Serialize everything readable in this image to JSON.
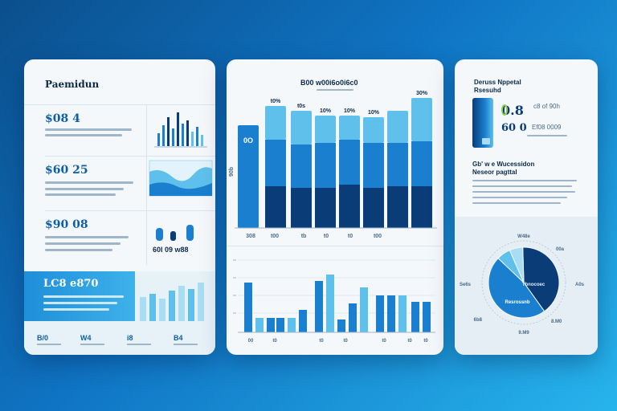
{
  "colors": {
    "dark_blue": "#0a3d78",
    "mid_blue": "#1a7fcf",
    "light_blue": "#5fc0ec",
    "pale_blue": "#a8ddf4",
    "accent_green": "#8fd14f",
    "text_dark": "#0b2a4a",
    "text_muted": "#4c6a86"
  },
  "left_card": {
    "title": "Paemidun",
    "stats": [
      {
        "value": "$08 4"
      },
      {
        "value": "$60 25"
      },
      {
        "value": "$90 08"
      }
    ],
    "mini_label": "60l 09 w88",
    "footer": {
      "value": "LC8 e870",
      "tabs": [
        {
          "label": "B/0"
        },
        {
          "label": "W4"
        },
        {
          "label": "i8"
        },
        {
          "label": "B4"
        }
      ]
    }
  },
  "mid_card": {
    "title": "B00 w00i6o0i6c0",
    "top_chart": {
      "bar_labels": [
        "t0%",
        "t0s",
        "10%",
        "10%",
        "10%",
        "30%"
      ],
      "inner_label": "0O",
      "axis_label": "90b",
      "x_labels": [
        "308",
        "t00",
        "tb",
        "t0",
        "t0",
        "t00"
      ]
    },
    "bottom_chart": {
      "x_labels": [
        "00",
        "t0",
        "t0",
        "t0",
        "t0",
        "t0",
        "t0"
      ]
    }
  },
  "right_card": {
    "title_line1": "Deruss Nppetal",
    "title_line2": "Rsesuhd",
    "figure1": "0.8",
    "figure1_label": "c8 of 90h",
    "figure2": "60 0",
    "figure2_label": "Ef08 0009",
    "subtitle_line1": "Gb' w e Wucessidon",
    "subtitle_line2": "Neseor pagttal",
    "pie": {
      "center_label": "Tbnocoec",
      "inner_label": "Resrossnb",
      "callouts": [
        "W48e",
        "00a",
        "Se6s",
        "A0s",
        "6b8",
        "8.M0",
        "9.M9"
      ]
    }
  }
}
